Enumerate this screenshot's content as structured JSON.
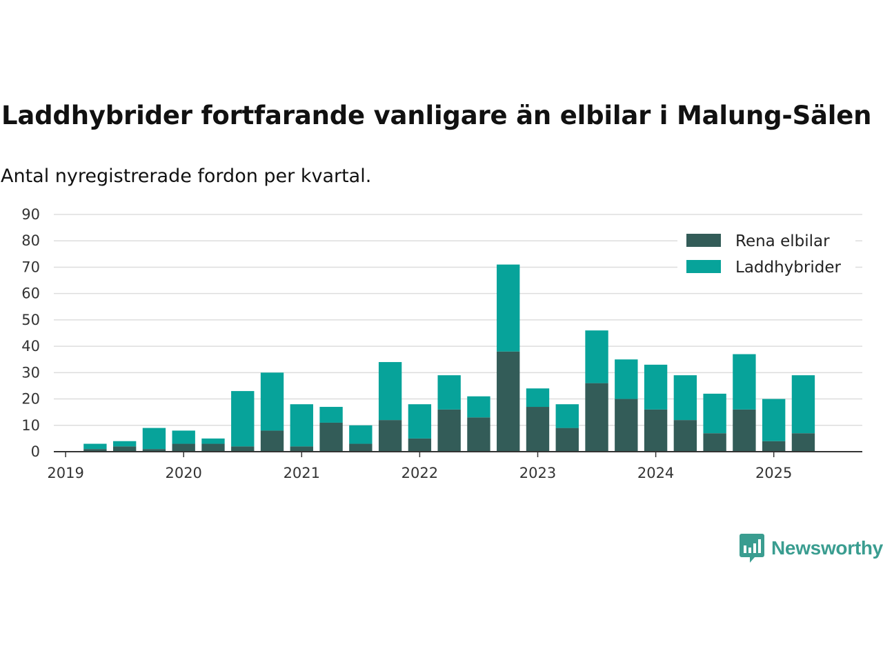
{
  "title": "Laddhybrider fortfarande vanligare än elbilar i Malung-Sälen",
  "subtitle": "Antal nyregistrerade fordon per kvartal.",
  "brand": {
    "name": "Newsworthy",
    "icon": "newsworthy-logo-icon",
    "color": "#3a9d90"
  },
  "chart_data": {
    "type": "bar",
    "stacked": true,
    "x_tick_labels": [
      "2019",
      "2020",
      "2021",
      "2022",
      "2023",
      "2024",
      "2025"
    ],
    "x_tick_positions": [
      2019.0,
      2020.0,
      2021.0,
      2022.0,
      2023.0,
      2024.0,
      2025.0
    ],
    "xlim": [
      2018.9,
      2025.75
    ],
    "ylim": [
      0,
      90
    ],
    "y_ticks": [
      0,
      10,
      20,
      30,
      40,
      50,
      60,
      70,
      80,
      90
    ],
    "grid": true,
    "legend": "top-right",
    "x": [
      2019.25,
      2019.5,
      2019.75,
      2020.0,
      2020.25,
      2020.5,
      2020.75,
      2021.0,
      2021.25,
      2021.5,
      2021.75,
      2022.0,
      2022.25,
      2022.5,
      2022.75,
      2023.0,
      2023.25,
      2023.5,
      2023.75,
      2024.0,
      2024.25,
      2024.5,
      2024.75,
      2025.0,
      2025.25
    ],
    "series": [
      {
        "name": "Rena elbilar",
        "color": "#335c58",
        "values": [
          1,
          2,
          1,
          3,
          3,
          2,
          8,
          2,
          11,
          3,
          12,
          5,
          16,
          13,
          38,
          17,
          9,
          26,
          20,
          16,
          12,
          7,
          16,
          4,
          7
        ]
      },
      {
        "name": "Laddhybrider",
        "color": "#07a39a",
        "values": [
          2,
          2,
          8,
          5,
          2,
          21,
          22,
          16,
          6,
          7,
          22,
          13,
          13,
          8,
          33,
          7,
          9,
          20,
          15,
          17,
          17,
          15,
          21,
          16,
          22
        ]
      }
    ]
  }
}
